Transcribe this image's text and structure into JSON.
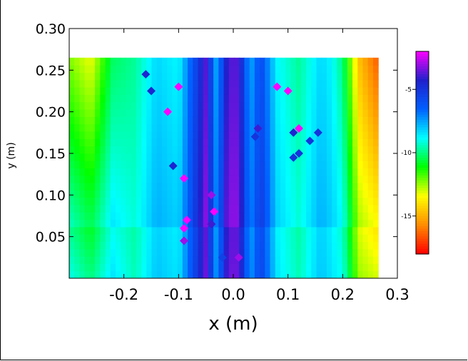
{
  "chart_data": {
    "type": "heatmap",
    "xlabel": "x (m)",
    "ylabel": "y (m)",
    "xlim": [
      -0.3,
      0.3
    ],
    "ylim": [
      0.0,
      0.3
    ],
    "x_ticks": [
      "-0.2",
      "-0.1",
      "0.0",
      "0.1",
      "0.2",
      "0.3"
    ],
    "x_tick_values": [
      -0.2,
      -0.1,
      0.0,
      0.1,
      0.2,
      0.3
    ],
    "y_ticks": [
      "0.30",
      "0.25",
      "0.20",
      "0.15",
      "0.10",
      "0.05"
    ],
    "y_tick_values": [
      0.3,
      0.25,
      0.2,
      0.15,
      0.1,
      0.05
    ],
    "colorbar": {
      "ticks": [
        "-5",
        "-10",
        "-15"
      ],
      "tick_values": [
        -5,
        -10,
        -15
      ],
      "range": [
        -18,
        -2
      ],
      "colors": [
        "#ff0000",
        "#ff8c00",
        "#ffff00",
        "#00ff00",
        "#00ffff",
        "#0060ff",
        "#2020cc",
        "#ff00ff"
      ]
    },
    "field": {
      "x_extent": [
        -0.3,
        0.265
      ],
      "y_extent": [
        0.0,
        0.265
      ],
      "profile_x": [
        -0.3,
        -0.26,
        -0.22,
        -0.18,
        -0.14,
        -0.1,
        -0.07,
        -0.05,
        -0.03,
        -0.01,
        0.01,
        0.03,
        0.05,
        0.08,
        0.12,
        0.16,
        0.2,
        0.23,
        0.26
      ],
      "profile_value": [
        -8.5,
        -9.5,
        -8.0,
        -9.0,
        -7.5,
        -8.0,
        -5.0,
        -3.0,
        -7.0,
        -3.0,
        -3.0,
        -7.0,
        -5.0,
        -8.0,
        -9.0,
        -7.5,
        -8.5,
        -12.0,
        -12.5
      ]
    },
    "markers": [
      {
        "x": -0.16,
        "y": 0.245,
        "v": -4.5
      },
      {
        "x": -0.15,
        "y": 0.225,
        "v": -4.5
      },
      {
        "x": -0.12,
        "y": 0.2,
        "v": -2.0
      },
      {
        "x": -0.1,
        "y": 0.23,
        "v": -2.0
      },
      {
        "x": -0.11,
        "y": 0.135,
        "v": -4.5
      },
      {
        "x": -0.09,
        "y": 0.12,
        "v": -2.0
      },
      {
        "x": -0.09,
        "y": 0.06,
        "v": -2.0
      },
      {
        "x": -0.085,
        "y": 0.07,
        "v": -2.0
      },
      {
        "x": -0.09,
        "y": 0.045,
        "v": -3.0
      },
      {
        "x": -0.04,
        "y": 0.1,
        "v": -3.0
      },
      {
        "x": -0.035,
        "y": 0.08,
        "v": -2.0
      },
      {
        "x": -0.04,
        "y": 0.065,
        "v": -4.0
      },
      {
        "x": -0.02,
        "y": 0.025,
        "v": -5.5
      },
      {
        "x": 0.01,
        "y": 0.025,
        "v": -3.0
      },
      {
        "x": 0.045,
        "y": 0.18,
        "v": -4.0
      },
      {
        "x": 0.04,
        "y": 0.17,
        "v": -5.0
      },
      {
        "x": 0.11,
        "y": 0.175,
        "v": -4.5
      },
      {
        "x": 0.12,
        "y": 0.18,
        "v": -2.0
      },
      {
        "x": 0.14,
        "y": 0.165,
        "v": -5.0
      },
      {
        "x": 0.155,
        "y": 0.175,
        "v": -5.0
      },
      {
        "x": 0.12,
        "y": 0.15,
        "v": -5.0
      },
      {
        "x": 0.11,
        "y": 0.145,
        "v": -5.0
      },
      {
        "x": 0.08,
        "y": 0.23,
        "v": -2.0
      },
      {
        "x": 0.1,
        "y": 0.225,
        "v": -2.0
      }
    ]
  }
}
